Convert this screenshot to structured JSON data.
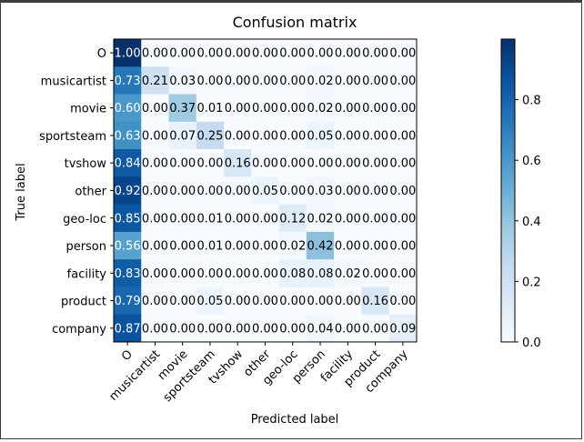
{
  "chart_data": {
    "type": "heatmap",
    "title": "Confusion matrix",
    "xlabel": "Predicted label",
    "ylabel": "True label",
    "labels": [
      "O",
      "musicartist",
      "movie",
      "sportsteam",
      "tvshow",
      "other",
      "geo-loc",
      "person",
      "facility",
      "product",
      "company"
    ],
    "matrix": [
      [
        1.0,
        0.0,
        0.0,
        0.0,
        0.0,
        0.0,
        0.0,
        0.0,
        0.0,
        0.0,
        0.0
      ],
      [
        0.73,
        0.21,
        0.03,
        0.0,
        0.0,
        0.0,
        0.0,
        0.02,
        0.0,
        0.0,
        0.0
      ],
      [
        0.6,
        0.0,
        0.37,
        0.01,
        0.0,
        0.0,
        0.0,
        0.02,
        0.0,
        0.0,
        0.0
      ],
      [
        0.63,
        0.0,
        0.07,
        0.25,
        0.0,
        0.0,
        0.0,
        0.05,
        0.0,
        0.0,
        0.0
      ],
      [
        0.84,
        0.0,
        0.0,
        0.0,
        0.16,
        0.0,
        0.0,
        0.0,
        0.0,
        0.0,
        0.0
      ],
      [
        0.92,
        0.0,
        0.0,
        0.0,
        0.0,
        0.05,
        0.0,
        0.03,
        0.0,
        0.0,
        0.0
      ],
      [
        0.85,
        0.0,
        0.0,
        0.01,
        0.0,
        0.0,
        0.12,
        0.02,
        0.0,
        0.0,
        0.0
      ],
      [
        0.56,
        0.0,
        0.0,
        0.01,
        0.0,
        0.0,
        0.02,
        0.42,
        0.0,
        0.0,
        0.0
      ],
      [
        0.83,
        0.0,
        0.0,
        0.0,
        0.0,
        0.0,
        0.08,
        0.08,
        0.02,
        0.0,
        0.0
      ],
      [
        0.79,
        0.0,
        0.0,
        0.05,
        0.0,
        0.0,
        0.0,
        0.0,
        0.0,
        0.16,
        0.0
      ],
      [
        0.87,
        0.0,
        0.0,
        0.0,
        0.0,
        0.0,
        0.0,
        0.04,
        0.0,
        0.0,
        0.09
      ]
    ],
    "colorbar": {
      "ticks": [
        "0.0",
        "0.2",
        "0.4",
        "0.6",
        "0.8"
      ],
      "range": [
        0,
        1.0
      ],
      "colormap": "Blues"
    },
    "text_color_dark": "#000000",
    "text_color_light": "#ffffff"
  }
}
